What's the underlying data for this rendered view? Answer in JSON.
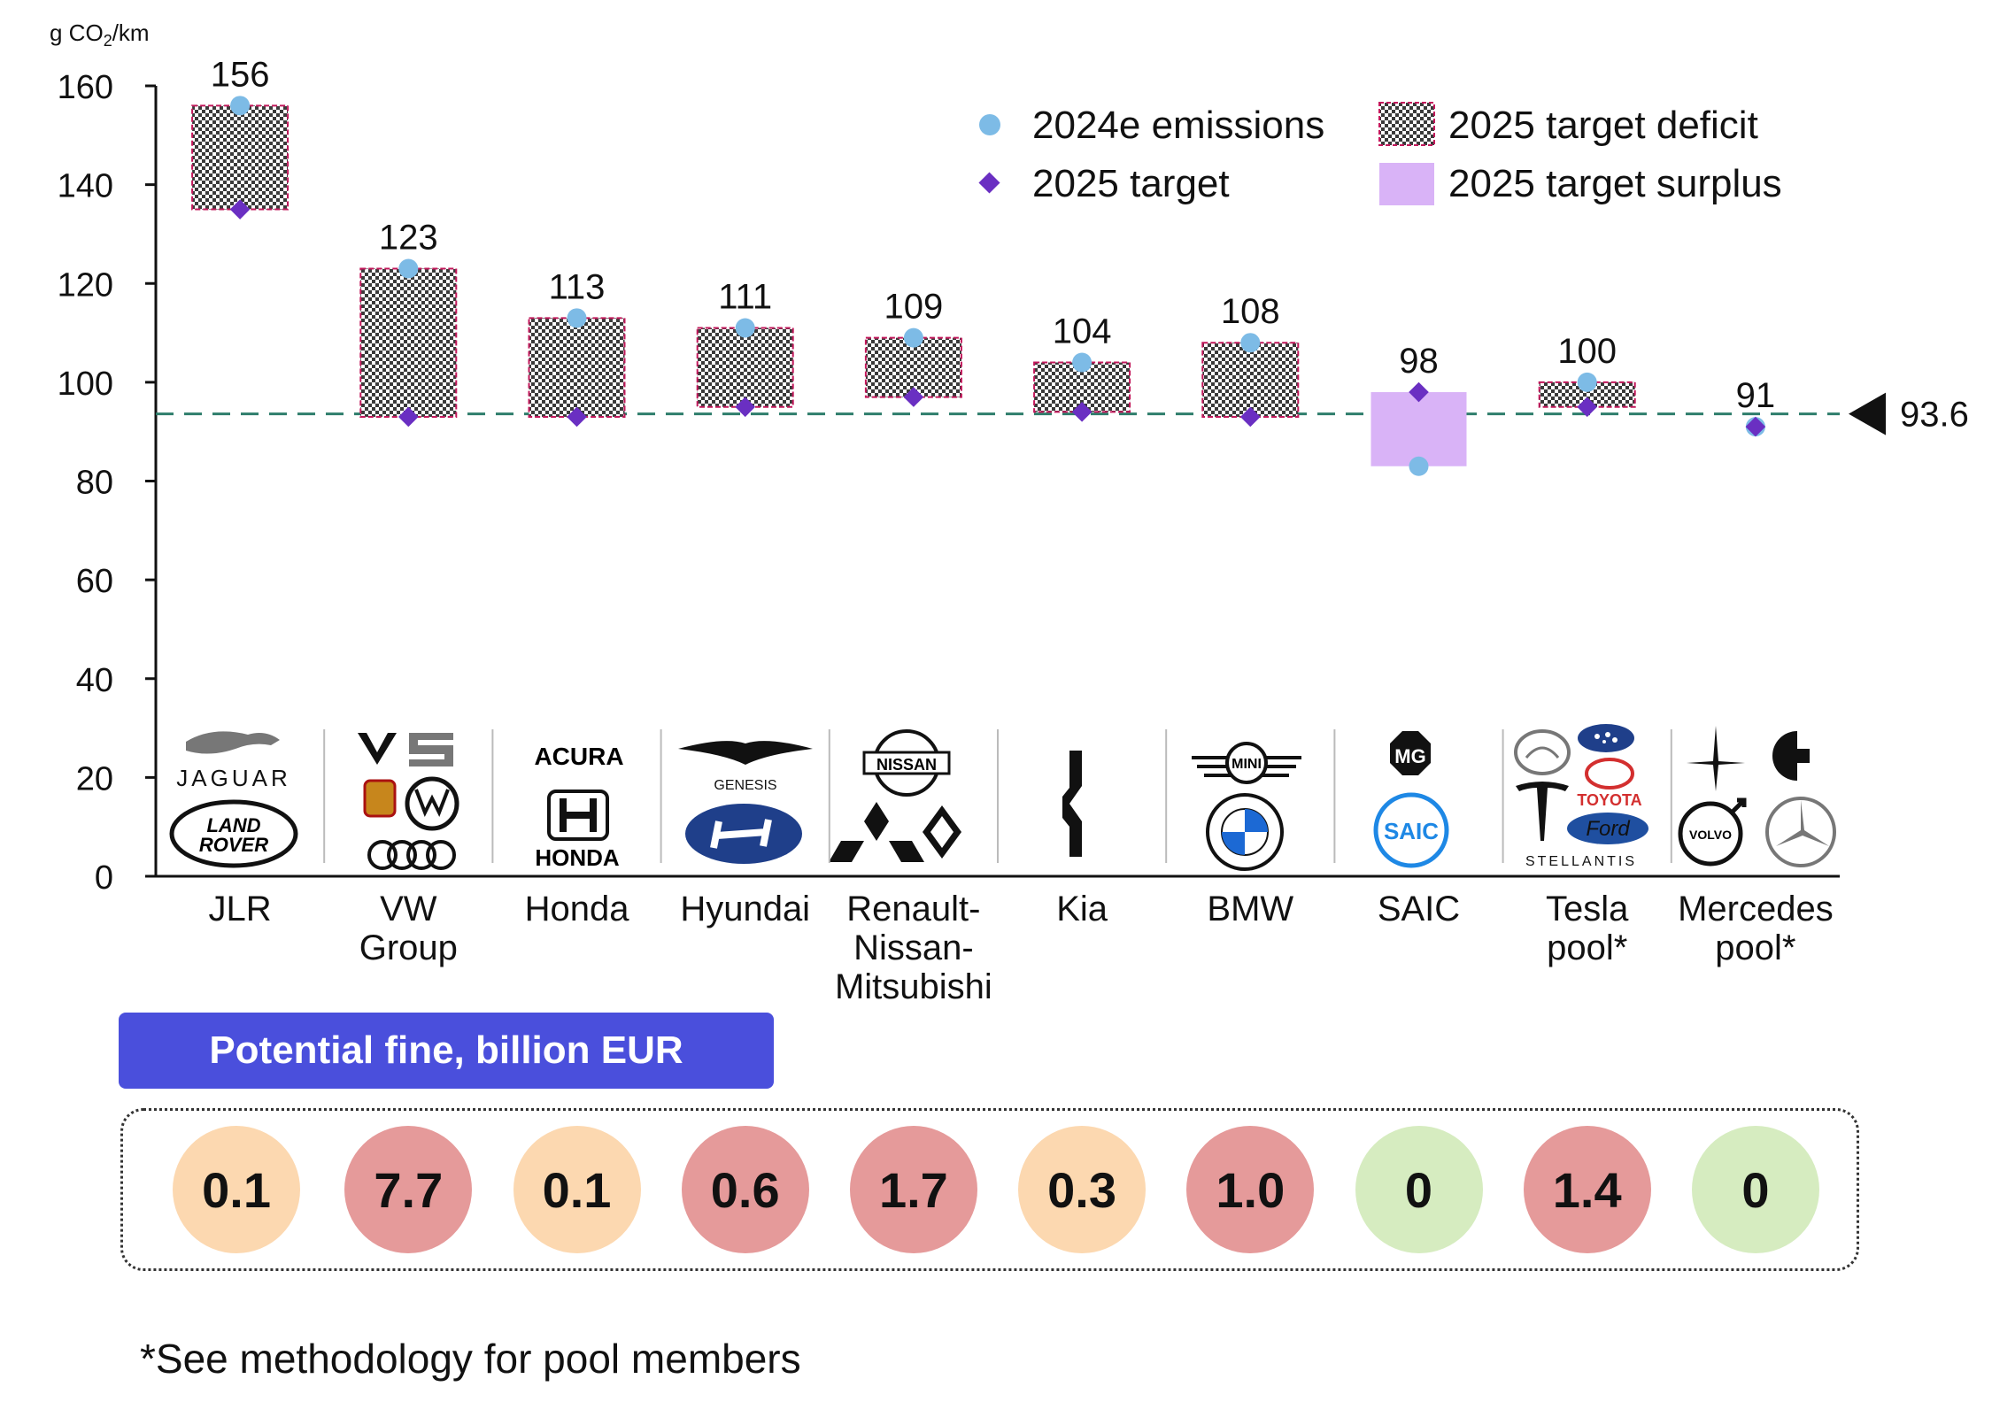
{
  "chart_data": {
    "type": "range-dot",
    "ylabel": "g CO₂/km",
    "ylim": [
      0,
      160
    ],
    "yticks": [
      "0",
      "20",
      "40",
      "60",
      "80",
      "100",
      "120",
      "140",
      "160"
    ],
    "reference_line": {
      "value": 93.6,
      "label": "93.6"
    },
    "legend": {
      "emissions": "2024e emissions",
      "target": "2025 target",
      "deficit": "2025 target deficit",
      "surplus": "2025 target surplus"
    },
    "categories": [
      {
        "id": "jlr",
        "label": [
          "JLR"
        ],
        "emissions": 156,
        "target": 135,
        "shown": "156"
      },
      {
        "id": "vw",
        "label": [
          "VW",
          "Group"
        ],
        "emissions": 123,
        "target": 93,
        "shown": "123"
      },
      {
        "id": "honda",
        "label": [
          "Honda"
        ],
        "emissions": 113,
        "target": 93,
        "shown": "113"
      },
      {
        "id": "hyundai",
        "label": [
          "Hyundai"
        ],
        "emissions": 111,
        "target": 95,
        "shown": "111"
      },
      {
        "id": "rnm",
        "label": [
          "Renault-",
          "Nissan-",
          "Mitsubishi"
        ],
        "emissions": 109,
        "target": 97,
        "shown": "109"
      },
      {
        "id": "kia",
        "label": [
          "Kia"
        ],
        "emissions": 104,
        "target": 94,
        "shown": "104"
      },
      {
        "id": "bmw",
        "label": [
          "BMW"
        ],
        "emissions": 108,
        "target": 93,
        "shown": "108"
      },
      {
        "id": "saic",
        "label": [
          "SAIC"
        ],
        "emissions": 83,
        "target": 98,
        "shown": "98"
      },
      {
        "id": "tesla",
        "label": [
          "Tesla",
          "pool*"
        ],
        "emissions": 100,
        "target": 95,
        "shown": "100"
      },
      {
        "id": "mercedes",
        "label": [
          "Mercedes",
          "pool*"
        ],
        "emissions": 91,
        "target": 91,
        "shown": "91"
      }
    ],
    "colors": {
      "emissions": "#7dbbe6",
      "target": "#6a2fc2",
      "deficit_border": "#c2185b",
      "surplus": "#d9b3f7",
      "refline": "#2e7d6b"
    }
  },
  "logos": {
    "jlr": [
      "JAGUAR",
      "LAND",
      "ROVER"
    ],
    "honda": [
      "ACURA",
      "HONDA"
    ],
    "hyundai": [
      "GENESIS"
    ],
    "rnm": [
      "NISSAN"
    ],
    "bmw": [
      "MINI"
    ],
    "saic": [
      "MG",
      "SAIC"
    ],
    "tesla": [
      "TOYOTA",
      "Ford",
      "STELLANTIS"
    ],
    "mercedes": [
      "VOLVO"
    ]
  },
  "fines": {
    "title": "Potential fine, billion EUR",
    "values": [
      {
        "value": "0.1",
        "color": "#fcd8b0"
      },
      {
        "value": "7.7",
        "color": "#e59a9a"
      },
      {
        "value": "0.1",
        "color": "#fcd8b0"
      },
      {
        "value": "0.6",
        "color": "#e59a9a"
      },
      {
        "value": "1.7",
        "color": "#e59a9a"
      },
      {
        "value": "0.3",
        "color": "#fcd8b0"
      },
      {
        "value": "1.0",
        "color": "#e59a9a"
      },
      {
        "value": "0",
        "color": "#d6ecc0"
      },
      {
        "value": "1.4",
        "color": "#e59a9a"
      },
      {
        "value": "0",
        "color": "#d6ecc0"
      }
    ]
  },
  "footnote": "*See methodology for pool members"
}
